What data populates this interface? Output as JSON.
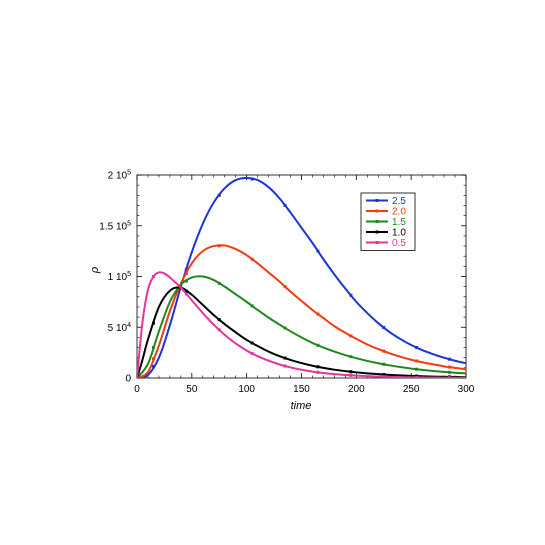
{
  "chart_data": {
    "type": "line",
    "xlabel": "time",
    "ylabel": "ρ",
    "xlim": [
      0,
      300
    ],
    "ylim": [
      0,
      200000
    ],
    "x_ticks": [
      0,
      50,
      100,
      150,
      200,
      250,
      300
    ],
    "x_tick_labels": [
      "0",
      "50",
      "100",
      "150",
      "200",
      "250",
      "300"
    ],
    "y_ticks": [
      0,
      50000,
      100000,
      150000,
      200000
    ],
    "y_tick_labels": [
      {
        "mantissa": "0",
        "exponent": ""
      },
      {
        "mantissa": "5 10",
        "exponent": "4"
      },
      {
        "mantissa": "1 10",
        "exponent": "5"
      },
      {
        "mantissa": "1.5 10",
        "exponent": "5"
      },
      {
        "mantissa": "2 10",
        "exponent": "5"
      }
    ],
    "grid": false,
    "legend_position": "top-right",
    "series": [
      {
        "name": "2.5",
        "color": "#1a35d6",
        "x": [
          0,
          10,
          20,
          30,
          40,
          50,
          60,
          70,
          80,
          90,
          100,
          110,
          120,
          130,
          140,
          150,
          160,
          170,
          180,
          190,
          200,
          210,
          220,
          230,
          240,
          250,
          260,
          270,
          280,
          290,
          300
        ],
        "y": [
          0,
          3000,
          20000,
          52000,
          90000,
          124000,
          152000,
          173000,
          187000,
          195000,
          197000,
          195000,
          188000,
          177000,
          163000,
          148000,
          133000,
          117000,
          102000,
          88000,
          75000,
          64000,
          54000,
          45500,
          38500,
          32500,
          27500,
          23500,
          20000,
          17000,
          14500
        ]
      },
      {
        "name": "2.0",
        "color": "#f23c0f",
        "x": [
          0,
          10,
          20,
          30,
          40,
          50,
          60,
          70,
          80,
          90,
          100,
          110,
          120,
          130,
          140,
          150,
          160,
          170,
          180,
          190,
          200,
          210,
          220,
          230,
          240,
          250,
          260,
          270,
          280,
          290,
          300
        ],
        "y": [
          0,
          6000,
          32000,
          66000,
          93000,
          113000,
          125000,
          130000,
          130500,
          127000,
          121000,
          113000,
          104000,
          95000,
          85000,
          76000,
          67000,
          59000,
          51000,
          44500,
          38500,
          33000,
          28500,
          24500,
          21000,
          18000,
          15500,
          13500,
          11500,
          10000,
          8500
        ]
      },
      {
        "name": "1.5",
        "color": "#1b8a1b",
        "x": [
          0,
          10,
          20,
          30,
          40,
          50,
          60,
          70,
          80,
          90,
          100,
          110,
          120,
          130,
          140,
          150,
          160,
          170,
          180,
          190,
          200,
          210,
          220,
          230,
          240,
          250,
          260,
          270,
          280,
          290,
          300
        ],
        "y": [
          0,
          14000,
          46000,
          75000,
          92000,
          99000,
          100000,
          96500,
          90000,
          82500,
          75000,
          67000,
          59500,
          52500,
          46000,
          40000,
          34500,
          30000,
          26000,
          22500,
          19500,
          16800,
          14500,
          12500,
          10800,
          9300,
          8000,
          6900,
          6000,
          5200,
          4500
        ]
      },
      {
        "name": "1.0",
        "color": "#000000",
        "x": [
          0,
          5,
          10,
          20,
          30,
          40,
          50,
          60,
          70,
          80,
          90,
          100,
          110,
          120,
          130,
          140,
          150,
          160,
          170,
          180,
          190,
          200,
          210,
          220,
          230,
          240,
          250,
          260,
          270,
          280,
          290,
          300
        ],
        "y": [
          0,
          18000,
          38000,
          70000,
          86000,
          89000,
          82000,
          72000,
          62000,
          53000,
          45000,
          37500,
          31500,
          26000,
          21500,
          17800,
          14700,
          12100,
          10000,
          8200,
          6800,
          5600,
          4600,
          3800,
          3100,
          2600,
          2100,
          1700,
          1400,
          1200,
          1000,
          800
        ]
      },
      {
        "name": "0.5",
        "color": "#e8339f",
        "x": [
          0,
          5,
          10,
          15,
          20,
          25,
          30,
          40,
          50,
          60,
          70,
          80,
          90,
          100,
          110,
          120,
          130,
          140,
          150,
          160,
          170,
          180,
          190,
          200,
          210,
          220,
          230,
          240,
          250,
          260,
          270,
          280,
          290,
          300
        ],
        "y": [
          0,
          55000,
          87000,
          100000,
          104000,
          103000,
          99000,
          89000,
          76500,
          64000,
          52500,
          42500,
          34000,
          27000,
          21500,
          17000,
          13300,
          10400,
          8100,
          6300,
          4900,
          3800,
          3000,
          2300,
          1800,
          1400,
          1100,
          850,
          650,
          500,
          400,
          300,
          250,
          200
        ]
      }
    ]
  }
}
